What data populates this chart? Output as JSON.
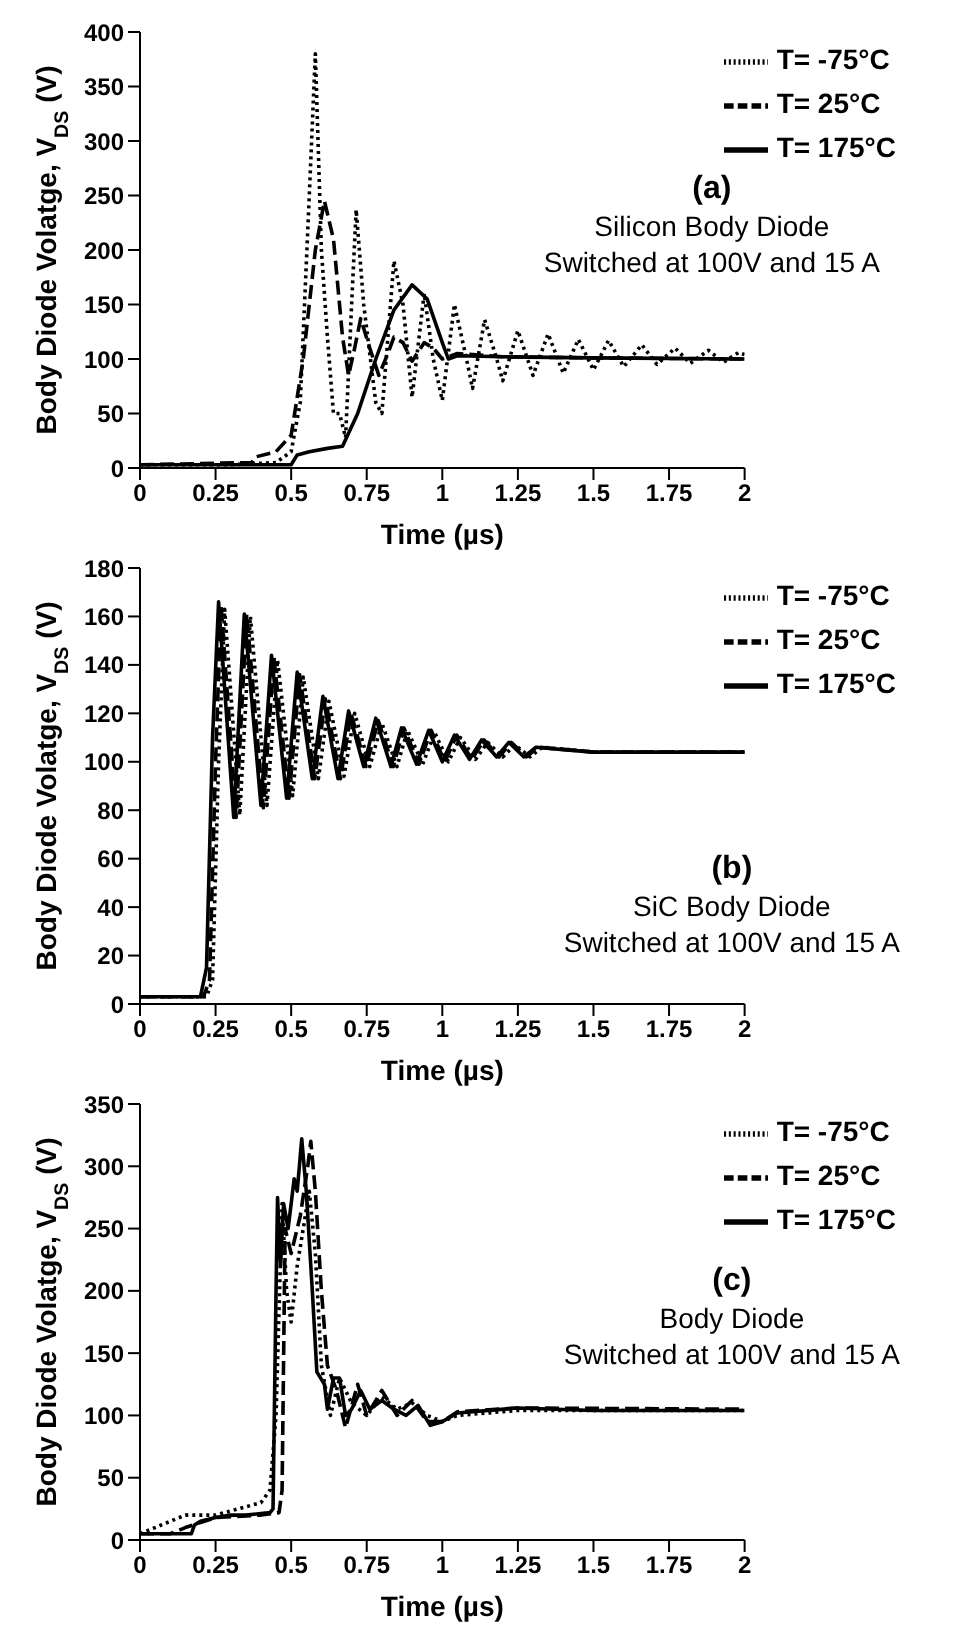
{
  "chart_data": [
    {
      "type": "line",
      "xlabel": "Time (µs)",
      "ylabel": "Body Diode Volatge, V$_{DS}$ (V)",
      "xlim": [
        0,
        2
      ],
      "xticks": [
        0,
        0.25,
        0.5,
        0.75,
        1,
        1.25,
        1.5,
        1.75,
        2
      ],
      "ylim": [
        0,
        400
      ],
      "yticks": [
        0,
        50,
        100,
        150,
        200,
        250,
        300,
        350,
        400
      ],
      "legend": "top right",
      "annotations": [
        "(a)",
        "Silicon Body Diode",
        "Switched at 100V and 15 A"
      ],
      "series": [
        {
          "name": "T= -75°C",
          "color": "#000000",
          "line_style": "dotted",
          "x": [
            0,
            0.3,
            0.45,
            0.5,
            0.53,
            0.56,
            0.58,
            0.6,
            0.62,
            0.64,
            0.66,
            0.68,
            0.7,
            0.715,
            0.74,
            0.78,
            0.8,
            0.84,
            0.87,
            0.9,
            0.94,
            0.97,
            1.0,
            1.04,
            1.08,
            1.1,
            1.14,
            1.18,
            1.2,
            1.25,
            1.3,
            1.35,
            1.4,
            1.45,
            1.5,
            1.55,
            1.6,
            1.66,
            1.71,
            1.77,
            1.82,
            1.88,
            1.93,
            1.98,
            2
          ],
          "values": [
            3,
            3,
            5,
            15,
            60,
            250,
            380,
            200,
            120,
            50,
            50,
            28,
            150,
            237,
            150,
            60,
            50,
            190,
            150,
            65,
            160,
            100,
            62,
            150,
            100,
            73,
            136,
            100,
            80,
            126,
            85,
            123,
            87,
            118,
            90,
            117,
            93,
            113,
            95,
            110,
            96,
            108,
            97,
            106,
            104
          ]
        },
        {
          "name": "T= 25°C",
          "color": "#000000",
          "line_style": "dashed",
          "x": [
            0,
            0.37,
            0.38,
            0.45,
            0.5,
            0.54,
            0.58,
            0.61,
            0.64,
            0.67,
            0.69,
            0.71,
            0.73,
            0.76,
            0.79,
            0.82,
            0.84,
            0.87,
            0.9,
            0.94,
            0.97,
            1.0,
            1.05,
            1.2,
            1.5,
            2
          ],
          "values": [
            3,
            5,
            10,
            15,
            30,
            100,
            200,
            245,
            210,
            120,
            85,
            110,
            137,
            110,
            85,
            105,
            120,
            115,
            98,
            115,
            110,
            100,
            105,
            102,
            101,
            100
          ]
        },
        {
          "name": "T= 175°C",
          "color": "#000000",
          "line_style": "solid",
          "x": [
            0,
            0.5,
            0.52,
            0.56,
            0.62,
            0.67,
            0.72,
            0.78,
            0.84,
            0.9,
            0.95,
            1.0,
            1.02,
            1.05,
            1.2,
            1.5,
            2
          ],
          "values": [
            3,
            3,
            12,
            15,
            18,
            20,
            50,
            100,
            145,
            168,
            155,
            115,
            100,
            103,
            102,
            101,
            100
          ]
        }
      ]
    },
    {
      "type": "line",
      "xlabel": "Time (µs)",
      "ylabel": "Body Diode Volatge, V$_{DS}$ (V)",
      "xlim": [
        0,
        2
      ],
      "xticks": [
        0,
        0.25,
        0.5,
        0.75,
        1,
        1.25,
        1.5,
        1.75,
        2
      ],
      "ylim": [
        0,
        180
      ],
      "yticks": [
        0,
        20,
        40,
        60,
        80,
        100,
        120,
        140,
        160,
        180
      ],
      "legend": "top right",
      "annotations": [
        "(b)",
        "SiC Body Diode",
        "Switched at 100V and 15 A"
      ],
      "series": [
        {
          "name": "T= -75°C",
          "color": "#000000",
          "line_style": "dotted",
          "x": [
            0,
            0.22,
            0.24,
            0.26,
            0.28,
            0.33,
            0.365,
            0.42,
            0.455,
            0.505,
            0.54,
            0.59,
            0.625,
            0.675,
            0.71,
            0.76,
            0.8,
            0.85,
            0.885,
            0.935,
            0.975,
            1.02,
            1.06,
            1.11,
            1.15,
            1.2,
            1.24,
            1.29,
            1.33,
            1.42,
            1.5,
            2
          ],
          "values": [
            3,
            3,
            10,
            100,
            163,
            78,
            160,
            82,
            142,
            86,
            135,
            93,
            125,
            94,
            120,
            98,
            116,
            98,
            113,
            99,
            112,
            100,
            110,
            101,
            108,
            102,
            107,
            102,
            106,
            105,
            104,
            104
          ]
        },
        {
          "name": "T= 25°C",
          "color": "#000000",
          "line_style": "dashed",
          "x": [
            0,
            0.21,
            0.23,
            0.25,
            0.268,
            0.318,
            0.353,
            0.408,
            0.443,
            0.493,
            0.528,
            0.578,
            0.613,
            0.663,
            0.698,
            0.748,
            0.788,
            0.838,
            0.873,
            0.923,
            0.963,
            1.008,
            1.048,
            1.098,
            1.138,
            1.188,
            1.228,
            1.278,
            1.318,
            1.41,
            1.5,
            2
          ],
          "values": [
            3,
            3,
            10,
            100,
            165,
            77,
            161,
            81,
            143,
            85,
            136,
            93,
            126,
            93,
            120,
            98,
            117,
            98,
            114,
            99,
            113,
            100,
            111,
            101,
            109,
            102,
            108,
            102,
            106,
            105,
            104,
            104
          ]
        },
        {
          "name": "T= 175°C",
          "color": "#000000",
          "line_style": "solid",
          "x": [
            0,
            0.2,
            0.22,
            0.24,
            0.26,
            0.31,
            0.345,
            0.4,
            0.435,
            0.485,
            0.52,
            0.57,
            0.605,
            0.655,
            0.69,
            0.74,
            0.78,
            0.83,
            0.865,
            0.915,
            0.955,
            1.0,
            1.04,
            1.09,
            1.13,
            1.18,
            1.22,
            1.27,
            1.31,
            1.4,
            1.5,
            2
          ],
          "values": [
            3,
            3,
            15,
            110,
            166,
            77,
            161,
            82,
            144,
            85,
            137,
            93,
            127,
            93,
            121,
            98,
            118,
            98,
            114,
            99,
            113,
            100,
            111,
            101,
            109,
            102,
            108,
            102,
            106,
            105,
            104,
            104
          ]
        }
      ]
    },
    {
      "type": "line",
      "xlabel": "Time (µs)",
      "ylabel": "Body Diode Volatge, V$_{DS}$ (V)",
      "xlim": [
        0,
        2
      ],
      "xticks": [
        0,
        0.25,
        0.5,
        0.75,
        1,
        1.25,
        1.5,
        1.75,
        2
      ],
      "ylim": [
        0,
        350
      ],
      "yticks": [
        0,
        50,
        100,
        150,
        200,
        250,
        300,
        350
      ],
      "legend": "top right",
      "annotations": [
        "(c)",
        "Body Diode",
        "Switched at 100V and 15 A"
      ],
      "series": [
        {
          "name": "T= -75°C",
          "color": "#000000",
          "line_style": "dotted",
          "x": [
            0,
            0.1,
            0.15,
            0.25,
            0.4,
            0.43,
            0.45,
            0.47,
            0.485,
            0.5,
            0.52,
            0.54,
            0.56,
            0.58,
            0.6,
            0.63,
            0.66,
            0.7,
            0.75,
            0.8,
            0.85,
            0.9,
            0.95,
            1.0,
            1.05,
            1.25,
            2
          ],
          "values": [
            5,
            15,
            20,
            20,
            30,
            40,
            100,
            270,
            200,
            175,
            220,
            250,
            280,
            230,
            140,
            100,
            130,
            110,
            100,
            115,
            105,
            110,
            100,
            95,
            100,
            104,
            104
          ]
        },
        {
          "name": "T= 25°C",
          "color": "#000000",
          "line_style": "dashed",
          "x": [
            0,
            0.1,
            0.15,
            0.25,
            0.4,
            0.46,
            0.47,
            0.48,
            0.5,
            0.53,
            0.555,
            0.565,
            0.58,
            0.6,
            0.62,
            0.65,
            0.68,
            0.72,
            0.75,
            0.8,
            0.85,
            0.9,
            0.95,
            1.0,
            1.05,
            1.25,
            2
          ],
          "values": [
            5,
            5,
            10,
            18,
            20,
            22,
            40,
            250,
            230,
            260,
            300,
            320,
            280,
            200,
            140,
            120,
            90,
            125,
            100,
            120,
            100,
            112,
            95,
            95,
            103,
            106,
            105
          ]
        },
        {
          "name": "T= 175°C",
          "color": "#000000",
          "line_style": "solid",
          "x": [
            0,
            0.17,
            0.18,
            0.2,
            0.25,
            0.3,
            0.35,
            0.43,
            0.44,
            0.45,
            0.455,
            0.465,
            0.475,
            0.49,
            0.51,
            0.52,
            0.535,
            0.55,
            0.57,
            0.585,
            0.61,
            0.62,
            0.64,
            0.66,
            0.68,
            0.7,
            0.73,
            0.76,
            0.8,
            0.84,
            0.88,
            0.92,
            0.96,
            1.0,
            1.05,
            1.25,
            1.5,
            2
          ],
          "values": [
            5,
            5,
            12,
            15,
            18,
            20,
            20,
            22,
            25,
            200,
            275,
            220,
            270,
            250,
            290,
            280,
            322,
            280,
            200,
            135,
            125,
            105,
            130,
            130,
            100,
            105,
            120,
            105,
            112,
            105,
            100,
            108,
            92,
            95,
            102,
            106,
            104,
            104
          ]
        }
      ]
    }
  ]
}
